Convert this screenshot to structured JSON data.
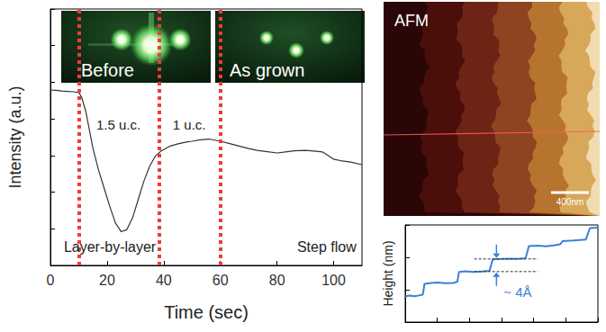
{
  "chart_data": [
    {
      "type": "line",
      "x_label": "Time (sec)",
      "y_label": "Intensity (a.u.)",
      "x": [
        0,
        2,
        4,
        6,
        8,
        10,
        11,
        12.5,
        14,
        15,
        17,
        19,
        21,
        23,
        25,
        27,
        29,
        31,
        33,
        35,
        37,
        39,
        42,
        45,
        48,
        50,
        53,
        56,
        60,
        63,
        66,
        70,
        73,
        76,
        80,
        83,
        86,
        90,
        93,
        96,
        98,
        100,
        103,
        106,
        110
      ],
      "values": [
        4.79,
        4.78,
        4.76,
        4.75,
        4.74,
        4.72,
        4.6,
        4.2,
        3.6,
        3.2,
        2.6,
        2.1,
        1.6,
        1.15,
        0.92,
        0.98,
        1.3,
        1.8,
        2.3,
        2.7,
        2.98,
        3.12,
        3.25,
        3.32,
        3.37,
        3.39,
        3.43,
        3.45,
        3.39,
        3.33,
        3.27,
        3.19,
        3.14,
        3.11,
        3.07,
        3.1,
        3.13,
        3.14,
        3.12,
        3.1,
        3.0,
        2.9,
        2.85,
        2.82,
        2.75
      ],
      "color": "#333333",
      "xlim": [
        0,
        110
      ],
      "xticks": [
        0,
        20,
        40,
        60,
        80,
        100
      ],
      "ylim": [
        0,
        7
      ],
      "yticks": [
        0,
        1,
        2,
        3,
        4,
        5,
        6,
        7
      ],
      "tick_labels": "x",
      "grid": false,
      "markers": {
        "x": [
          10,
          38.5,
          60
        ],
        "color": "#ee3b3b",
        "line_style": "dotted"
      },
      "annotations": [
        "1.5 u.c.",
        "1 u.c.",
        "Layer-by-layer",
        "Step flow"
      ],
      "insets": [
        {
          "label": "Before"
        },
        {
          "label": "As grown"
        }
      ]
    },
    {
      "type": "line",
      "y_label": "Height (nm)",
      "x": [
        0,
        60,
        120,
        180,
        220,
        240,
        300,
        400,
        500,
        600,
        650,
        670,
        750,
        850,
        950,
        1050,
        1090,
        1200,
        1300,
        1400,
        1500,
        1540,
        1650,
        1750,
        1850,
        1930,
        1960,
        2100,
        2250,
        2300,
        2400
      ],
      "values": [
        0.8,
        0.82,
        0.8,
        0.83,
        0.85,
        1.18,
        1.2,
        1.22,
        1.2,
        1.21,
        1.25,
        1.55,
        1.57,
        1.55,
        1.56,
        1.58,
        1.94,
        1.95,
        1.96,
        1.95,
        1.97,
        2.35,
        2.36,
        2.34,
        2.37,
        2.4,
        2.5,
        2.52,
        2.55,
        2.9,
        2.92
      ],
      "color": "#3d7fd6",
      "xlim": [
        0,
        2400
      ],
      "xticks": [
        0,
        400,
        800,
        1200,
        1600,
        2000,
        2400
      ],
      "ylim": [
        0,
        3
      ],
      "yticks": [
        0,
        1,
        2,
        3
      ],
      "tick_labels": false,
      "grid": false,
      "annotation": {
        "text": "~ 4Å",
        "x": [
          860,
          1650
        ],
        "y": [
          1.56,
          1.95
        ]
      }
    }
  ],
  "image": {
    "label": "AFM",
    "scale_bar": "400nm"
  }
}
